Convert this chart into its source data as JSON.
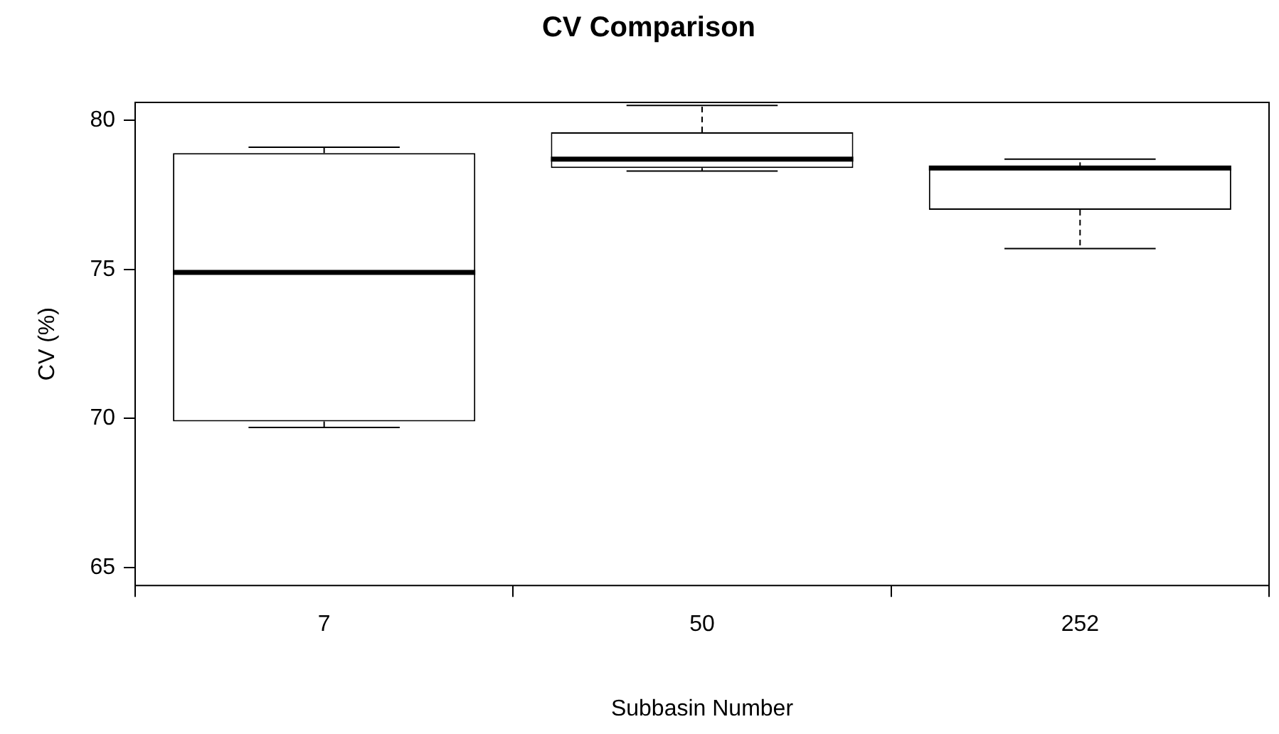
{
  "chart_data": {
    "type": "box",
    "title": "CV Comparison",
    "xlabel": "Subbasin Number",
    "ylabel": "CV (%)",
    "categories": [
      "7",
      "50",
      "252"
    ],
    "boxes": [
      {
        "low": 69.7,
        "q1": 69.9,
        "median": 74.9,
        "q3": 78.9,
        "high": 79.1
      },
      {
        "low": 78.3,
        "q1": 78.4,
        "median": 78.7,
        "q3": 79.6,
        "high": 80.5
      },
      {
        "low": 75.7,
        "q1": 77.0,
        "median": 78.4,
        "q3": 78.4,
        "high": 78.7
      }
    ],
    "ylim": [
      64.4,
      80.6
    ],
    "yticks": [
      65,
      70,
      75,
      80
    ],
    "grid": false,
    "legend": false
  }
}
